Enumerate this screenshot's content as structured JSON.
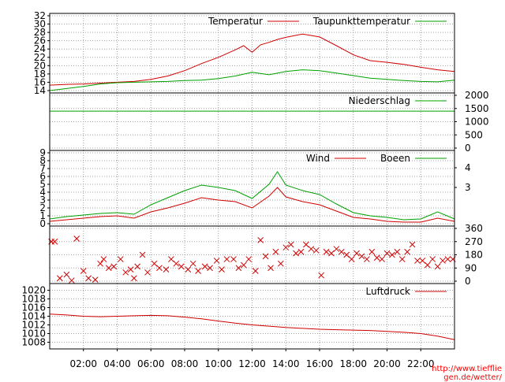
{
  "footer_credit": "http://www.tiefflie gen.de/wetter/",
  "chart_data": {
    "type": "line",
    "x_axis": {
      "unit": "hours",
      "range": [
        0,
        24
      ],
      "tick_labels": [
        "02:00",
        "04:00",
        "06:00",
        "08:00",
        "10:00",
        "12:00",
        "14:00",
        "16:00",
        "18:00",
        "20:00",
        "22:00"
      ],
      "tick_values": [
        2,
        4,
        6,
        8,
        10,
        12,
        14,
        16,
        18,
        20,
        22
      ]
    },
    "grid": true,
    "colors": {
      "red": "#d00000",
      "green": "#00a000",
      "grid": "#a0a0a0"
    },
    "panels": [
      {
        "id": "temperature",
        "ylim": [
          14,
          32
        ],
        "left_ticks": [
          "14",
          "16",
          "18",
          "20",
          "22",
          "24",
          "26",
          "28",
          "30",
          "32"
        ],
        "left_tick_values": [
          14,
          16,
          18,
          20,
          22,
          24,
          26,
          28,
          30,
          32
        ],
        "legend_position": "top-right",
        "series": [
          {
            "name": "Temperatur",
            "color": "#d00000",
            "x": [
              0,
              1,
              2,
              3,
              4,
              5,
              6,
              7,
              8,
              9,
              10,
              11,
              11.5,
              12,
              12.5,
              13,
              13.5,
              14,
              15,
              16,
              17,
              18,
              19,
              20,
              21,
              22,
              23,
              24
            ],
            "y": [
              15.3,
              15.5,
              15.6,
              15.8,
              16.0,
              16.2,
              16.7,
              17.5,
              18.8,
              20.5,
              22.0,
              23.8,
              24.8,
              23.2,
              25.0,
              25.6,
              26.3,
              26.8,
              27.6,
              26.9,
              24.8,
              22.6,
              21.2,
              20.8,
              20.3,
              19.6,
              19.0,
              18.6
            ]
          },
          {
            "name": "Taupunkttemperatur",
            "color": "#00a000",
            "x": [
              0,
              1,
              2,
              3,
              4,
              5,
              6,
              7,
              8,
              9,
              10,
              11,
              12,
              13,
              14,
              15,
              16,
              17,
              18,
              19,
              20,
              21,
              22,
              23,
              24
            ],
            "y": [
              14.0,
              14.5,
              15.0,
              15.6,
              15.9,
              16.0,
              16.1,
              16.2,
              16.4,
              16.5,
              16.9,
              17.5,
              18.4,
              17.8,
              18.6,
              19.0,
              18.8,
              18.2,
              17.6,
              17.0,
              16.7,
              16.4,
              16.2,
              16.1,
              16.5
            ]
          }
        ]
      },
      {
        "id": "precipitation",
        "ylim": [
          0,
          2000
        ],
        "right_ticks": [
          "0",
          "500",
          "1000",
          "1500",
          "2000"
        ],
        "right_tick_values": [
          0,
          500,
          1000,
          1500,
          2000
        ],
        "legend_position": "top-right",
        "series": [
          {
            "name": "Niederschlag",
            "color": "#00a000",
            "x": [
              0,
              24
            ],
            "y": [
              1400,
              1400
            ]
          }
        ]
      },
      {
        "id": "wind",
        "ylim": [
          0,
          9
        ],
        "left_ticks": [
          "0",
          "1",
          "2",
          "3",
          "4",
          "5",
          "6",
          "7",
          "8",
          "9"
        ],
        "left_tick_values": [
          0,
          1,
          2,
          3,
          4,
          5,
          6,
          7,
          8,
          9
        ],
        "right_ticks": [
          "3",
          "4"
        ],
        "right_tick_values": [
          4.6,
          7.1
        ],
        "legend_position": "top-right",
        "series": [
          {
            "name": "Wind",
            "color": "#d00000",
            "x": [
              0,
              1,
              2,
              3,
              4,
              5,
              6,
              7,
              8,
              9,
              10,
              11,
              12,
              13,
              13.5,
              14,
              15,
              16,
              17,
              18,
              19,
              20,
              21,
              22,
              23,
              24
            ],
            "y": [
              0.3,
              0.5,
              0.7,
              0.9,
              1.0,
              0.7,
              1.5,
              2.0,
              2.6,
              3.3,
              3.0,
              2.8,
              2.0,
              3.5,
              4.6,
              3.4,
              2.8,
              2.4,
              1.6,
              0.8,
              0.6,
              0.3,
              0.2,
              0.2,
              0.7,
              0.3
            ]
          },
          {
            "name": "Boeen",
            "color": "#00a000",
            "x": [
              0,
              1,
              2,
              3,
              4,
              5,
              6,
              7,
              8,
              9,
              10,
              11,
              12,
              13,
              13.5,
              14,
              15,
              16,
              17,
              18,
              19,
              20,
              21,
              22,
              23,
              24
            ],
            "y": [
              0.6,
              0.9,
              1.1,
              1.3,
              1.4,
              1.2,
              2.4,
              3.3,
              4.2,
              4.9,
              4.6,
              4.2,
              3.2,
              5.0,
              6.6,
              4.9,
              4.2,
              3.7,
              2.5,
              1.4,
              1.0,
              0.8,
              0.5,
              0.6,
              1.5,
              0.6
            ]
          }
        ]
      },
      {
        "id": "wind-direction",
        "type": "scatter",
        "ylim": [
          0,
          360
        ],
        "right_ticks": [
          "0",
          "90",
          "180",
          "270",
          "360"
        ],
        "right_tick_values": [
          0,
          90,
          180,
          270,
          360
        ],
        "series": [
          {
            "name": "",
            "color": "#d00000",
            "marker": "x",
            "x": [
              0.1,
              0.3,
              0.6,
              1.0,
              1.3,
              1.6,
              2.0,
              2.3,
              2.7,
              3.0,
              3.2,
              3.5,
              3.8,
              4.2,
              4.5,
              4.8,
              5.0,
              5.2,
              5.5,
              5.8,
              6.2,
              6.5,
              6.9,
              7.2,
              7.5,
              7.8,
              8.2,
              8.5,
              8.8,
              9.2,
              9.5,
              9.9,
              10.2,
              10.5,
              10.9,
              11.2,
              11.5,
              11.8,
              12.2,
              12.5,
              12.8,
              13.1,
              13.4,
              13.7,
              14.0,
              14.3,
              14.6,
              14.9,
              15.2,
              15.5,
              15.8,
              16.1,
              16.4,
              16.7,
              17.0,
              17.3,
              17.6,
              17.9,
              18.2,
              18.5,
              18.8,
              19.1,
              19.4,
              19.7,
              20.0,
              20.3,
              20.6,
              20.9,
              21.2,
              21.5,
              21.8,
              22.1,
              22.4,
              22.7,
              23.0,
              23.3,
              23.6,
              23.9
            ],
            "y": [
              270,
              270,
              20,
              45,
              5,
              290,
              70,
              20,
              10,
              120,
              150,
              90,
              100,
              150,
              60,
              80,
              20,
              100,
              180,
              60,
              120,
              90,
              80,
              150,
              120,
              100,
              80,
              120,
              70,
              100,
              90,
              140,
              80,
              150,
              150,
              90,
              110,
              150,
              70,
              280,
              170,
              90,
              200,
              120,
              230,
              250,
              190,
              200,
              250,
              220,
              210,
              40,
              200,
              190,
              220,
              200,
              180,
              150,
              190,
              170,
              150,
              200,
              160,
              150,
              190,
              180,
              200,
              150,
              200,
              250,
              140,
              140,
              110,
              150,
              100,
              140,
              150,
              150
            ]
          }
        ]
      },
      {
        "id": "pressure",
        "ylim": [
          1007,
          1021
        ],
        "left_ticks": [
          "1008",
          "1010",
          "1012",
          "1014",
          "1016",
          "1018",
          "1020"
        ],
        "left_tick_values": [
          1008,
          1010,
          1012,
          1014,
          1016,
          1018,
          1020
        ],
        "legend_position": "top-right",
        "series": [
          {
            "name": "Luftdruck",
            "color": "#d00000",
            "x": [
              0,
              1,
              2,
              3,
              4,
              5,
              6,
              7,
              8,
              9,
              10,
              11,
              12,
              13,
              14,
              15,
              16,
              17,
              18,
              19,
              20,
              21,
              22,
              23,
              24
            ],
            "y": [
              1014.5,
              1014.3,
              1014.0,
              1013.9,
              1014.0,
              1014.1,
              1014.2,
              1014.1,
              1013.8,
              1013.4,
              1012.9,
              1012.4,
              1012.0,
              1011.7,
              1011.4,
              1011.2,
              1011.0,
              1010.9,
              1010.8,
              1010.7,
              1010.5,
              1010.3,
              1010.0,
              1009.4,
              1008.6
            ]
          }
        ]
      }
    ]
  }
}
